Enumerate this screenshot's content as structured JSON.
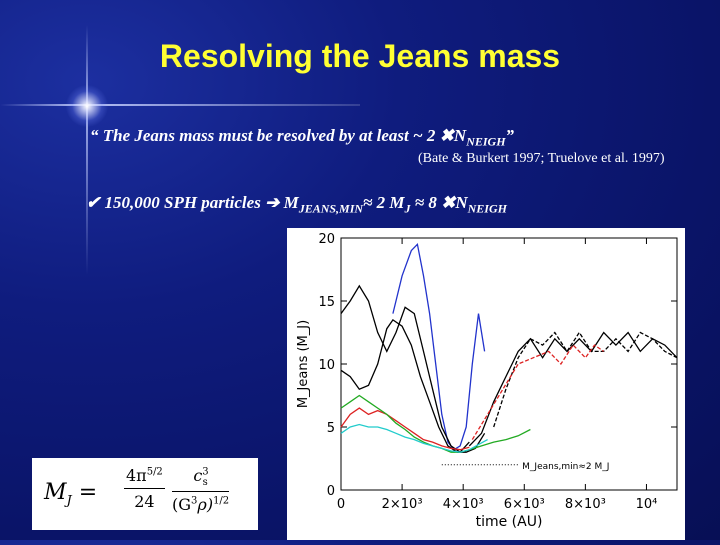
{
  "slide": {
    "title": "Resolving the Jeans mass",
    "quote": {
      "open": "“ The Jeans mass must be resolved by at least ~ 2",
      "times_symbol": "✖",
      "n_label": "N",
      "n_sub": "NEIGH",
      "close": "”"
    },
    "reference": "(Bate & Burkert 1997; Truelove et al. 1997)",
    "bullet": {
      "check": "✔",
      "text": "150,000 SPH particles",
      "arrow": "➔",
      "mjeans_label": "M",
      "mjeans_sub": "JEANS,MIN",
      "approx1": "≈ 2 M",
      "mj_sub": "J",
      "approx2": " ≈ 8",
      "times_symbol": "✖",
      "n_label": "N",
      "n_sub": "NEIGH"
    },
    "formula": {
      "lhs_m": "M",
      "lhs_sub": "J",
      "equals": "=",
      "coeff_num": "4π",
      "coeff_num_exp": "5/2",
      "coeff_den": "24",
      "cs": "c",
      "cs_sub": "s",
      "cs_exp": "3",
      "den_g": "(G",
      "den_g_exp": "3",
      "den_rho": "ρ)",
      "den_exp": "1/2"
    }
  },
  "chart_data": {
    "type": "line",
    "xlabel": "time (AU)",
    "ylabel": "M_Jeans (M_J)",
    "xlim": [
      0,
      11000
    ],
    "ylim": [
      0,
      20
    ],
    "x_ticks": [
      0,
      2000,
      4000,
      6000,
      8000,
      10000
    ],
    "x_tick_labels": [
      "0",
      "2×10³",
      "4×10³",
      "6×10³",
      "8×10³",
      "10⁴"
    ],
    "y_ticks": [
      0,
      5,
      10,
      15,
      20
    ],
    "y_tick_labels": [
      "0",
      "5",
      "10",
      "15",
      "20"
    ],
    "annotation": "M_Jeans,min≈2 M_J",
    "annotation_line": {
      "x": [
        3300,
        5800
      ],
      "y": 2.0
    },
    "series": [
      {
        "color": "#2233cc",
        "dash": "",
        "x": [
          1700,
          2000,
          2300,
          2500,
          2700,
          2900,
          3100,
          3300,
          3500,
          3700,
          3900,
          4100,
          4300,
          4500,
          4700
        ],
        "y": [
          14,
          17,
          19,
          19.5,
          17,
          14,
          10,
          6,
          3.8,
          3.2,
          3.5,
          5,
          10,
          14,
          11
        ]
      },
      {
        "color": "#000000",
        "dash": "",
        "x": [
          0,
          300,
          600,
          900,
          1200,
          1500,
          1700,
          2000,
          2300,
          2600,
          2900,
          3200,
          3500,
          3800,
          4100,
          4400,
          4700
        ],
        "y": [
          9.5,
          9,
          8,
          8.3,
          10,
          12.8,
          13.5,
          13,
          11.5,
          9,
          7,
          5,
          3.5,
          3,
          3,
          3.3,
          4.5
        ]
      },
      {
        "color": "#000000",
        "dash": "",
        "x": [
          0,
          300,
          600,
          900,
          1200,
          1500,
          1800,
          2100,
          2400,
          2700,
          3000,
          3300,
          3600,
          3900,
          4200
        ],
        "y": [
          14,
          15,
          16.2,
          15,
          12.5,
          11,
          12.5,
          14.5,
          14,
          11,
          8,
          5,
          3.5,
          3,
          3.8
        ]
      },
      {
        "color": "#000000",
        "dash": "",
        "x": [
          4200,
          4600,
          5000,
          5400,
          5800,
          6200,
          6600,
          7000,
          7400,
          7800,
          8200,
          8600,
          9000,
          9400,
          9800,
          10200,
          10600,
          11000
        ],
        "y": [
          3.5,
          4.5,
          7,
          9,
          11,
          12,
          10.5,
          12,
          11,
          12,
          11,
          12.5,
          11.5,
          12.5,
          11,
          12,
          11.5,
          10.5
        ]
      },
      {
        "color": "#000000",
        "dash": "4,2",
        "x": [
          5000,
          5400,
          5800,
          6200,
          6600,
          7000,
          7400,
          7800,
          8200,
          8600,
          9000,
          9400,
          9800,
          10200,
          10600,
          11000
        ],
        "y": [
          5,
          8,
          10.5,
          12,
          11.5,
          12.5,
          11,
          12.5,
          11,
          11,
          12,
          11,
          12.5,
          12,
          11,
          10.5
        ]
      },
      {
        "color": "#dd2222",
        "dash": "",
        "x": [
          0,
          300,
          600,
          900,
          1200,
          1500,
          1800,
          2100,
          2400,
          2700,
          3000,
          3300,
          3600,
          3900,
          4200
        ],
        "y": [
          5,
          6,
          6.5,
          6,
          6.3,
          6,
          5.5,
          5,
          4.5,
          4,
          3.8,
          3.5,
          3.3,
          3.2,
          3.4
        ]
      },
      {
        "color": "#dd2222",
        "dash": "4,2",
        "x": [
          4300,
          4800,
          5300,
          5800,
          6300,
          6800,
          7200,
          7600,
          8000,
          8300,
          8600
        ],
        "y": [
          4,
          6,
          8,
          10,
          10.5,
          11,
          10,
          11.5,
          10.5,
          11.5,
          11
        ]
      },
      {
        "color": "#22aa22",
        "dash": "",
        "x": [
          0,
          300,
          600,
          900,
          1200,
          1500,
          1800,
          2100,
          2400,
          2700,
          3000,
          3300,
          3600,
          3900,
          4200,
          4600,
          5000,
          5400,
          5800,
          6200
        ],
        "y": [
          6.5,
          7,
          7.5,
          7,
          6.5,
          6,
          5.3,
          4.8,
          4.2,
          3.8,
          3.5,
          3.3,
          3,
          3,
          3.2,
          3.5,
          3.8,
          4,
          4.3,
          4.8
        ]
      },
      {
        "color": "#22cccc",
        "dash": "",
        "x": [
          0,
          300,
          600,
          900,
          1200,
          1500,
          1800,
          2100,
          2400,
          2700,
          3000,
          3300,
          3600,
          3900,
          4200,
          4500,
          4800
        ],
        "y": [
          4.5,
          5,
          5.2,
          5,
          5,
          4.8,
          4.5,
          4.2,
          4,
          3.7,
          3.5,
          3.3,
          3.1,
          3,
          3.2,
          3.6,
          4
        ]
      }
    ]
  }
}
